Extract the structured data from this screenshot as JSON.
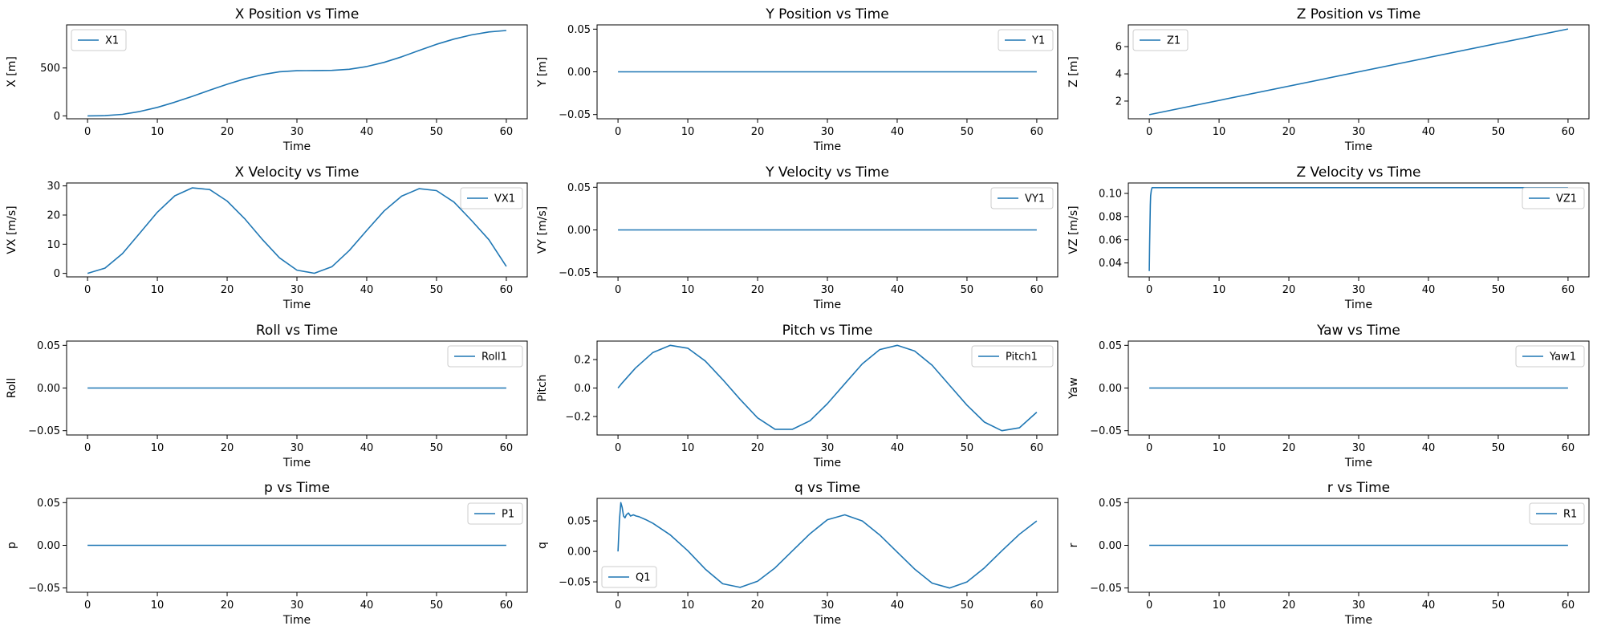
{
  "figure": {
    "rows": 4,
    "cols": 3,
    "line_color": "#1f77b4"
  },
  "chart_data": [
    {
      "type": "line",
      "title": "X Position vs Time",
      "xlabel": "Time",
      "ylabel": "X [m]",
      "xlim": [
        -3,
        63
      ],
      "ylim": [
        -30,
        950
      ],
      "xticks": [
        0,
        10,
        20,
        30,
        40,
        50,
        60
      ],
      "yticks": [
        0,
        500
      ],
      "legend": "upper left",
      "series": [
        {
          "name": "X1",
          "x": [
            0,
            2.5,
            5,
            7.5,
            10,
            12.5,
            15,
            17.5,
            20,
            22.5,
            25,
            27.5,
            30,
            32.5,
            35,
            37.5,
            40,
            42.5,
            45,
            47.5,
            50,
            52.5,
            55,
            57.5,
            60
          ],
          "y": [
            0,
            3,
            16,
            46,
            89,
            143,
            204,
            268,
            330,
            386,
            430,
            461,
            472,
            473,
            475,
            487,
            515,
            559,
            617,
            683,
            747,
            802,
            845,
            876,
            891
          ]
        }
      ]
    },
    {
      "type": "line",
      "title": "Y Position vs Time",
      "xlabel": "Time",
      "ylabel": "Y [m]",
      "xlim": [
        -3,
        63
      ],
      "ylim": [
        -0.055,
        0.055
      ],
      "xticks": [
        0,
        10,
        20,
        30,
        40,
        50,
        60
      ],
      "yticks": [
        -0.05,
        0.0,
        0.05
      ],
      "legend": "upper right",
      "series": [
        {
          "name": "Y1",
          "x": [
            0,
            60
          ],
          "y": [
            0,
            0
          ]
        }
      ]
    },
    {
      "type": "line",
      "title": "Z Position vs Time",
      "xlabel": "Time",
      "ylabel": "Z [m]",
      "xlim": [
        -3,
        63
      ],
      "ylim": [
        0.7,
        7.6
      ],
      "xticks": [
        0,
        10,
        20,
        30,
        40,
        50,
        60
      ],
      "yticks": [
        2,
        4,
        6
      ],
      "legend": "upper left",
      "series": [
        {
          "name": "Z1",
          "x": [
            0,
            60
          ],
          "y": [
            1.0,
            7.3
          ]
        }
      ]
    },
    {
      "type": "line",
      "title": "X Velocity vs Time",
      "xlabel": "Time",
      "ylabel": "VX [m/s]",
      "xlim": [
        -3,
        63
      ],
      "ylim": [
        -1.2,
        31
      ],
      "xticks": [
        0,
        10,
        20,
        30,
        40,
        50,
        60
      ],
      "yticks": [
        0,
        10,
        20,
        30
      ],
      "legend": "upper right",
      "series": [
        {
          "name": "VX1",
          "x": [
            0,
            2.5,
            5,
            7.5,
            10,
            12.5,
            15,
            17.5,
            20,
            22.5,
            25,
            27.5,
            30,
            32.5,
            35,
            37.5,
            40,
            42.5,
            45,
            47.5,
            50,
            52.5,
            55,
            57.5,
            60
          ],
          "y": [
            0,
            1.79,
            6.77,
            13.83,
            20.97,
            26.6,
            29.33,
            28.74,
            24.82,
            18.79,
            11.75,
            5.33,
            1.1,
            0.04,
            2.26,
            7.83,
            14.73,
            21.41,
            26.48,
            29.05,
            28.38,
            24.46,
            18.2,
            11.53,
            2.4
          ]
        }
      ]
    },
    {
      "type": "line",
      "title": "Y Velocity vs Time",
      "xlabel": "Time",
      "ylabel": "VY [m/s]",
      "xlim": [
        -3,
        63
      ],
      "ylim": [
        -0.055,
        0.055
      ],
      "xticks": [
        0,
        10,
        20,
        30,
        40,
        50,
        60
      ],
      "yticks": [
        -0.05,
        0.0,
        0.05
      ],
      "legend": "upper right",
      "series": [
        {
          "name": "VY1",
          "x": [
            0,
            60
          ],
          "y": [
            0,
            0
          ]
        }
      ]
    },
    {
      "type": "line",
      "title": "Z Velocity vs Time",
      "xlabel": "Time",
      "ylabel": "VZ [m/s]",
      "xlim": [
        -3,
        63
      ],
      "ylim": [
        0.028,
        0.109
      ],
      "xticks": [
        0,
        10,
        20,
        30,
        40,
        50,
        60
      ],
      "yticks": [
        0.04,
        0.06,
        0.08,
        0.1
      ],
      "legend": "upper right",
      "series": [
        {
          "name": "VZ1",
          "x": [
            0,
            0.05,
            0.1,
            0.15,
            0.2,
            0.3,
            0.4,
            0.6,
            1,
            60
          ],
          "y": [
            0.033,
            0.055,
            0.075,
            0.09,
            0.098,
            0.103,
            0.105,
            0.105,
            0.105,
            0.105
          ]
        }
      ]
    },
    {
      "type": "line",
      "title": "Roll vs Time",
      "xlabel": "Time",
      "ylabel": "Roll",
      "xlim": [
        -3,
        63
      ],
      "ylim": [
        -0.055,
        0.055
      ],
      "xticks": [
        0,
        10,
        20,
        30,
        40,
        50,
        60
      ],
      "yticks": [
        -0.05,
        0.0,
        0.05
      ],
      "legend": "upper right",
      "series": [
        {
          "name": "Roll1",
          "x": [
            0,
            60
          ],
          "y": [
            0,
            0
          ]
        }
      ]
    },
    {
      "type": "line",
      "title": "Pitch vs Time",
      "xlabel": "Time",
      "ylabel": "Pitch",
      "xlim": [
        -3,
        63
      ],
      "ylim": [
        -0.33,
        0.33
      ],
      "xticks": [
        0,
        10,
        20,
        30,
        40,
        50,
        60
      ],
      "yticks": [
        -0.2,
        0.0,
        0.2
      ],
      "legend": "upper right",
      "series": [
        {
          "name": "Pitch1",
          "x": [
            0,
            0.5,
            2.5,
            5,
            7.5,
            10,
            12.5,
            15,
            17.5,
            20,
            22.5,
            25,
            27.5,
            30,
            32.5,
            35,
            37.5,
            40,
            42.5,
            45,
            47.5,
            50,
            52.5,
            55,
            57.5,
            60
          ],
          "y": [
            0,
            0.03,
            0.14,
            0.25,
            0.3,
            0.28,
            0.19,
            0.06,
            -0.08,
            -0.21,
            -0.29,
            -0.29,
            -0.23,
            -0.11,
            0.03,
            0.17,
            0.27,
            0.3,
            0.26,
            0.16,
            0.02,
            -0.12,
            -0.24,
            -0.3,
            -0.28,
            -0.17
          ]
        }
      ]
    },
    {
      "type": "line",
      "title": "Yaw vs Time",
      "xlabel": "Time",
      "ylabel": "Yaw",
      "xlim": [
        -3,
        63
      ],
      "ylim": [
        -0.055,
        0.055
      ],
      "xticks": [
        0,
        10,
        20,
        30,
        40,
        50,
        60
      ],
      "yticks": [
        -0.05,
        0.0,
        0.05
      ],
      "legend": "upper right",
      "series": [
        {
          "name": "Yaw1",
          "x": [
            0,
            60
          ],
          "y": [
            0,
            0
          ]
        }
      ]
    },
    {
      "type": "line",
      "title": "p vs Time",
      "xlabel": "Time",
      "ylabel": "p",
      "xlim": [
        -3,
        63
      ],
      "ylim": [
        -0.055,
        0.055
      ],
      "xticks": [
        0,
        10,
        20,
        30,
        40,
        50,
        60
      ],
      "yticks": [
        -0.05,
        0.0,
        0.05
      ],
      "legend": "upper right",
      "series": [
        {
          "name": "P1",
          "x": [
            0,
            60
          ],
          "y": [
            0,
            0
          ]
        }
      ]
    },
    {
      "type": "line",
      "title": "q vs Time",
      "xlabel": "Time",
      "ylabel": "q",
      "xlim": [
        -3,
        63
      ],
      "ylim": [
        -0.067,
        0.087
      ],
      "xticks": [
        0,
        10,
        20,
        30,
        40,
        50,
        60
      ],
      "yticks": [
        -0.05,
        0.0,
        0.05
      ],
      "legend": "lower left",
      "series": [
        {
          "name": "Q1",
          "x": [
            0,
            0.2,
            0.4,
            0.6,
            0.8,
            1.0,
            1.2,
            1.5,
            1.8,
            2.2,
            2.6,
            3,
            4,
            5,
            7.5,
            10,
            12.5,
            15,
            17.5,
            20,
            22.5,
            25,
            27.5,
            30,
            32.5,
            35,
            37.5,
            40,
            42.5,
            45,
            47.5,
            50,
            52.5,
            55,
            57.5,
            60
          ],
          "y": [
            0,
            0.05,
            0.08,
            0.072,
            0.058,
            0.055,
            0.06,
            0.063,
            0.058,
            0.06,
            0.058,
            0.057,
            0.052,
            0.046,
            0.027,
            0.001,
            -0.029,
            -0.053,
            -0.059,
            -0.049,
            -0.027,
            0.001,
            0.029,
            0.052,
            0.06,
            0.05,
            0.027,
            -0.001,
            -0.029,
            -0.052,
            -0.06,
            -0.05,
            -0.027,
            0.001,
            0.028,
            0.05
          ]
        }
      ]
    },
    {
      "type": "line",
      "title": "r vs Time",
      "xlabel": "Time",
      "ylabel": "r",
      "xlim": [
        -3,
        63
      ],
      "ylim": [
        -0.055,
        0.055
      ],
      "xticks": [
        0,
        10,
        20,
        30,
        40,
        50,
        60
      ],
      "yticks": [
        -0.05,
        0.0,
        0.05
      ],
      "legend": "upper right",
      "series": [
        {
          "name": "R1",
          "x": [
            0,
            60
          ],
          "y": [
            0,
            0
          ]
        }
      ]
    }
  ]
}
